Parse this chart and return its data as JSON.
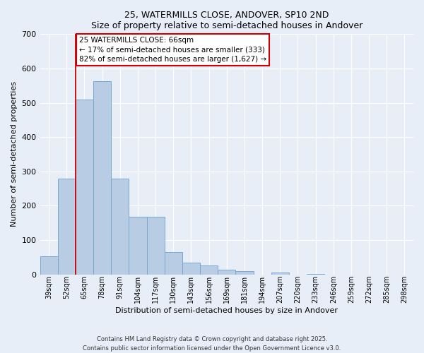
{
  "title": "25, WATERMILLS CLOSE, ANDOVER, SP10 2ND",
  "subtitle": "Size of property relative to semi-detached houses in Andover",
  "xlabel": "Distribution of semi-detached houses by size in Andover",
  "ylabel": "Number of semi-detached properties",
  "bar_labels": [
    "39sqm",
    "52sqm",
    "65sqm",
    "78sqm",
    "91sqm",
    "104sqm",
    "117sqm",
    "130sqm",
    "143sqm",
    "156sqm",
    "169sqm",
    "181sqm",
    "194sqm",
    "207sqm",
    "220sqm",
    "233sqm",
    "246sqm",
    "259sqm",
    "272sqm",
    "285sqm",
    "298sqm"
  ],
  "bar_values": [
    52,
    278,
    510,
    563,
    278,
    168,
    168,
    65,
    35,
    25,
    14,
    10,
    0,
    5,
    0,
    2,
    0,
    0,
    0,
    0,
    0
  ],
  "bar_color": "#b8cce4",
  "bar_edge_color": "#7aa8d4",
  "background_color": "#e8eef8",
  "grid_color": "#ffffff",
  "vline_index": 2,
  "vline_color": "#cc0000",
  "ylim": [
    0,
    700
  ],
  "yticks": [
    0,
    100,
    200,
    300,
    400,
    500,
    600,
    700
  ],
  "annotation_title": "25 WATERMILLS CLOSE: 66sqm",
  "annotation_line1": "← 17% of semi-detached houses are smaller (333)",
  "annotation_line2": "82% of semi-detached houses are larger (1,627) →",
  "annotation_box_color": "#ffffff",
  "annotation_box_edge": "#cc0000",
  "footnote1": "Contains HM Land Registry data © Crown copyright and database right 2025.",
  "footnote2": "Contains public sector information licensed under the Open Government Licence v3.0."
}
